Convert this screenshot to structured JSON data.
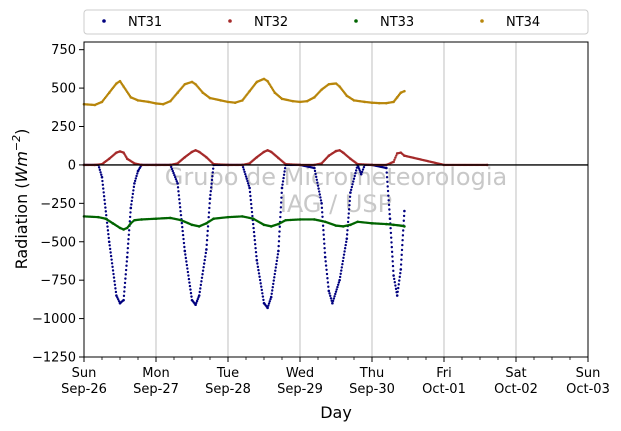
{
  "chart_data": {
    "type": "scatter",
    "xlabel": "Day",
    "ylabel": "Radiation (Wm⁻²)",
    "ylabel_prefix": "Radiation (",
    "ylabel_unit": "Wm",
    "ylabel_sup": "−2",
    "ylabel_suffix": ")",
    "watermark": [
      "Grupo de Micrometeorologia",
      "IAG / USP"
    ],
    "xlim_days": [
      0,
      7
    ],
    "ylim": [
      -1250,
      800
    ],
    "yticks": [
      750,
      500,
      250,
      0,
      -250,
      -500,
      -750,
      -1000,
      -1250
    ],
    "ytick_labels": [
      "750",
      "500",
      "250",
      "0",
      "−250",
      "−500",
      "−750",
      "−1000",
      "−1250"
    ],
    "xticks": [
      {
        "day": 0,
        "weekday": "Sun",
        "date": "Sep-26"
      },
      {
        "day": 1,
        "weekday": "Mon",
        "date": "Sep-27"
      },
      {
        "day": 2,
        "weekday": "Tue",
        "date": "Sep-28"
      },
      {
        "day": 3,
        "weekday": "Wed",
        "date": "Sep-29"
      },
      {
        "day": 4,
        "weekday": "Thu",
        "date": "Sep-30"
      },
      {
        "day": 5,
        "weekday": "Fri",
        "date": "Oct-01"
      },
      {
        "day": 6,
        "weekday": "Sat",
        "date": "Oct-02"
      },
      {
        "day": 7,
        "weekday": "Sun",
        "date": "Oct-03"
      }
    ],
    "zero_line": true,
    "grid": "vertical",
    "legend": "top, outside, 4 columns",
    "series": [
      {
        "name": "NT31",
        "color": "#00007f",
        "x": [
          0.0,
          0.2,
          0.25,
          0.35,
          0.45,
          0.5,
          0.55,
          0.6,
          0.65,
          0.7,
          0.75,
          0.8,
          1.0,
          1.2,
          1.3,
          1.4,
          1.5,
          1.55,
          1.6,
          1.7,
          1.75,
          1.8,
          2.0,
          2.2,
          2.3,
          2.4,
          2.5,
          2.55,
          2.6,
          2.7,
          2.75,
          2.8,
          3.0,
          3.2,
          3.3,
          3.35,
          3.4,
          3.45,
          3.55,
          3.65,
          3.7,
          3.8,
          3.85,
          3.9,
          4.0,
          4.2,
          4.25,
          4.3,
          4.35,
          4.4,
          4.45
        ],
        "y": [
          0,
          0,
          -80,
          -500,
          -850,
          -900,
          -880,
          -600,
          -280,
          -120,
          -40,
          0,
          0,
          0,
          -120,
          -560,
          -880,
          -910,
          -850,
          -550,
          -220,
          0,
          0,
          0,
          -150,
          -620,
          -900,
          -930,
          -860,
          -560,
          -150,
          0,
          0,
          -20,
          -250,
          -600,
          -820,
          -900,
          -750,
          -480,
          -180,
          0,
          -60,
          0,
          0,
          -20,
          -350,
          -720,
          -850,
          -680,
          -300
        ]
      },
      {
        "name": "NT32",
        "color": "#a52a2a",
        "x": [
          0.0,
          0.15,
          0.25,
          0.35,
          0.45,
          0.5,
          0.55,
          0.6,
          0.7,
          0.8,
          1.0,
          1.2,
          1.3,
          1.4,
          1.5,
          1.55,
          1.6,
          1.7,
          1.8,
          2.0,
          2.2,
          2.3,
          2.4,
          2.5,
          2.55,
          2.6,
          2.7,
          2.8,
          3.0,
          3.2,
          3.3,
          3.4,
          3.5,
          3.55,
          3.6,
          3.7,
          3.8,
          4.0,
          4.2,
          4.3,
          4.35,
          4.4,
          4.45,
          5.0,
          5.6
        ],
        "y": [
          0,
          0,
          5,
          40,
          80,
          88,
          80,
          40,
          10,
          0,
          0,
          0,
          10,
          50,
          85,
          95,
          85,
          50,
          5,
          0,
          0,
          10,
          50,
          85,
          95,
          85,
          45,
          5,
          0,
          0,
          10,
          60,
          90,
          95,
          80,
          40,
          5,
          0,
          0,
          20,
          75,
          80,
          60,
          0,
          0
        ]
      },
      {
        "name": "NT33",
        "color": "#006400",
        "x": [
          0.0,
          0.2,
          0.3,
          0.4,
          0.5,
          0.55,
          0.6,
          0.65,
          0.7,
          0.8,
          1.0,
          1.2,
          1.35,
          1.5,
          1.6,
          1.7,
          1.8,
          2.0,
          2.2,
          2.35,
          2.5,
          2.6,
          2.7,
          2.8,
          3.0,
          3.2,
          3.35,
          3.5,
          3.6,
          3.7,
          3.8,
          4.0,
          4.2,
          4.3,
          4.4,
          4.45
        ],
        "y": [
          -335,
          -340,
          -350,
          -380,
          -410,
          -420,
          -410,
          -380,
          -360,
          -355,
          -350,
          -345,
          -360,
          -390,
          -400,
          -380,
          -350,
          -340,
          -335,
          -350,
          -390,
          -400,
          -385,
          -360,
          -355,
          -355,
          -370,
          -395,
          -400,
          -390,
          -370,
          -380,
          -385,
          -390,
          -395,
          -400
        ]
      },
      {
        "name": "NT34",
        "color": "#b8860b",
        "x": [
          0.0,
          0.15,
          0.25,
          0.35,
          0.45,
          0.5,
          0.55,
          0.65,
          0.75,
          0.9,
          1.0,
          1.1,
          1.2,
          1.3,
          1.4,
          1.5,
          1.55,
          1.65,
          1.75,
          1.9,
          2.0,
          2.1,
          2.2,
          2.3,
          2.4,
          2.5,
          2.55,
          2.65,
          2.75,
          2.9,
          3.0,
          3.1,
          3.2,
          3.3,
          3.4,
          3.5,
          3.55,
          3.65,
          3.75,
          3.9,
          4.0,
          4.1,
          4.2,
          4.3,
          4.35,
          4.4,
          4.45
        ],
        "y": [
          395,
          390,
          410,
          470,
          530,
          545,
          510,
          440,
          420,
          410,
          400,
          395,
          415,
          470,
          525,
          540,
          525,
          470,
          435,
          420,
          410,
          405,
          420,
          480,
          540,
          560,
          545,
          470,
          430,
          415,
          410,
          415,
          440,
          490,
          525,
          530,
          510,
          450,
          420,
          410,
          405,
          402,
          402,
          410,
          440,
          470,
          480
        ]
      }
    ]
  }
}
